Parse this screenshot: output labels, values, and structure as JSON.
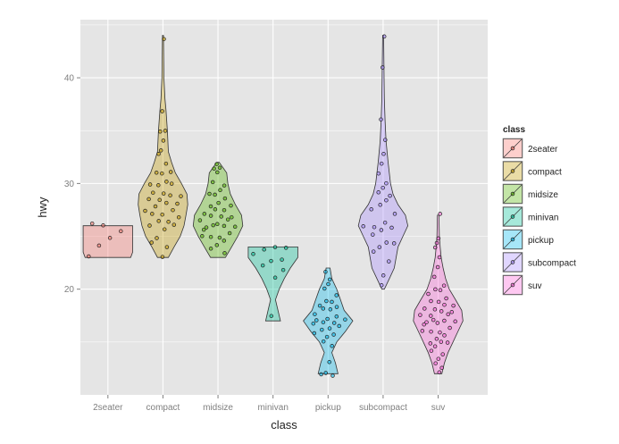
{
  "chart_data": {
    "type": "violin",
    "title": "",
    "xlabel": "class",
    "ylabel": "hwy",
    "ylim": [
      10,
      45.5
    ],
    "yticks": [
      20,
      30,
      40
    ],
    "grid": true,
    "legend_title": "class",
    "legend_position": "right",
    "categories": [
      "2seater",
      "compact",
      "midsize",
      "minivan",
      "pickup",
      "subcompact",
      "suv"
    ],
    "colors": {
      "2seater": "#F8766D",
      "compact": "#C49A00",
      "midsize": "#53B400",
      "minivan": "#00C094",
      "pickup": "#00B6EB",
      "subcompact": "#A58AFF",
      "suv": "#FB61D7"
    },
    "series": [
      {
        "name": "2seater",
        "density": [
          [
            23,
            0.92
          ],
          [
            23.5,
            1.0
          ],
          [
            25,
            1.0
          ],
          [
            26,
            1.0
          ]
        ],
        "points": [
          23.3,
          24.0,
          24.8,
          25.5,
          26.3,
          26.2
        ]
      },
      {
        "name": "compact",
        "density": [
          [
            23,
            0.22
          ],
          [
            24,
            0.45
          ],
          [
            25,
            0.7
          ],
          [
            26,
            0.85
          ],
          [
            27,
            0.93
          ],
          [
            28,
            1.0
          ],
          [
            29,
            0.97
          ],
          [
            30,
            0.75
          ],
          [
            31,
            0.5
          ],
          [
            32,
            0.35
          ],
          [
            33,
            0.22
          ],
          [
            35,
            0.18
          ],
          [
            37,
            0.12
          ],
          [
            38,
            0.08
          ],
          [
            40,
            0.04
          ],
          [
            44,
            0.02
          ]
        ],
        "points": [
          23,
          24,
          24.5,
          25,
          25.5,
          26,
          26,
          26.5,
          26.5,
          27,
          27,
          27,
          27.5,
          27.5,
          28,
          28,
          28,
          28.5,
          28.5,
          29,
          29,
          29,
          29,
          30,
          30,
          30,
          30,
          31,
          31,
          31,
          32,
          33,
          33,
          34,
          35,
          35,
          37,
          43.5
        ]
      },
      {
        "name": "midsize",
        "density": [
          [
            23,
            0.3
          ],
          [
            24,
            0.55
          ],
          [
            25,
            0.8
          ],
          [
            26,
            1.0
          ],
          [
            27,
            0.95
          ],
          [
            28,
            0.7
          ],
          [
            29,
            0.5
          ],
          [
            30,
            0.4
          ],
          [
            31,
            0.35
          ],
          [
            32,
            0.05
          ]
        ],
        "points": [
          23.5,
          24,
          24,
          24.5,
          25,
          25,
          25,
          25.5,
          25.5,
          26,
          26,
          26,
          26,
          26,
          26.5,
          26.5,
          27,
          27,
          27,
          27,
          27.5,
          27.5,
          28,
          28,
          28,
          28.5,
          29,
          29,
          29.5,
          30,
          30,
          31,
          31.5,
          31.5,
          32
        ]
      },
      {
        "name": "minivan",
        "density": [
          [
            17,
            0.3
          ],
          [
            18,
            0.2
          ],
          [
            19,
            0.1
          ],
          [
            20,
            0.25
          ],
          [
            21,
            0.45
          ],
          [
            22,
            0.7
          ],
          [
            23,
            1.0
          ],
          [
            24,
            1.0
          ]
        ],
        "points": [
          17.3,
          21,
          21.8,
          22.3,
          22.8,
          23,
          23.2,
          23.7,
          24,
          24
        ]
      },
      {
        "name": "pickup",
        "density": [
          [
            12,
            0.4
          ],
          [
            13,
            0.3
          ],
          [
            14,
            0.15
          ],
          [
            15,
            0.35
          ],
          [
            16,
            0.7
          ],
          [
            17,
            1.0
          ],
          [
            18,
            0.65
          ],
          [
            19,
            0.5
          ],
          [
            20,
            0.35
          ],
          [
            21,
            0.15
          ],
          [
            22,
            0.08
          ]
        ],
        "points": [
          11.8,
          12,
          12.2,
          13.3,
          14.5,
          15,
          15.5,
          15.8,
          16,
          16,
          16.2,
          16.5,
          16.8,
          17,
          17,
          17,
          17,
          17.2,
          17.5,
          17.8,
          18,
          18,
          18.3,
          18.5,
          19,
          19,
          19.3,
          20,
          20.5,
          21,
          21.8
        ]
      },
      {
        "name": "subcompact",
        "density": [
          [
            20,
            0.05
          ],
          [
            21,
            0.25
          ],
          [
            22,
            0.45
          ],
          [
            24,
            0.6
          ],
          [
            25,
            0.8
          ],
          [
            26,
            1.0
          ],
          [
            27,
            0.9
          ],
          [
            28,
            0.6
          ],
          [
            29,
            0.4
          ],
          [
            30,
            0.3
          ],
          [
            32,
            0.2
          ],
          [
            34,
            0.12
          ],
          [
            36,
            0.08
          ],
          [
            38,
            0.05
          ],
          [
            40,
            0.04
          ],
          [
            44,
            0.02
          ]
        ],
        "points": [
          20.5,
          21.5,
          22.5,
          23.5,
          24,
          24.5,
          24.5,
          25,
          25.5,
          25.8,
          26,
          26,
          26.5,
          27,
          27.5,
          28,
          28.5,
          29,
          29,
          29.5,
          30,
          31,
          32,
          33,
          34,
          36,
          41,
          44
        ]
      },
      {
        "name": "suv",
        "density": [
          [
            12,
            0.15
          ],
          [
            13,
            0.25
          ],
          [
            14,
            0.4
          ],
          [
            15,
            0.6
          ],
          [
            16,
            0.8
          ],
          [
            17,
            1.0
          ],
          [
            18,
            0.95
          ],
          [
            19,
            0.7
          ],
          [
            20,
            0.45
          ],
          [
            21,
            0.3
          ],
          [
            22,
            0.2
          ],
          [
            23,
            0.12
          ],
          [
            24,
            0.08
          ],
          [
            25,
            0.05
          ],
          [
            27,
            0.03
          ]
        ],
        "points": [
          12,
          12.5,
          13,
          13.5,
          14,
          14,
          14.5,
          15,
          15,
          15,
          15.5,
          15.5,
          16,
          16,
          16,
          16.5,
          16.5,
          17,
          17,
          17,
          17,
          17,
          17.5,
          17.5,
          17.5,
          18,
          18,
          18,
          18,
          18.5,
          18.5,
          19,
          19,
          19,
          19.5,
          20,
          20,
          20.5,
          21,
          22,
          23,
          24,
          24.5,
          25,
          27
        ]
      }
    ]
  }
}
